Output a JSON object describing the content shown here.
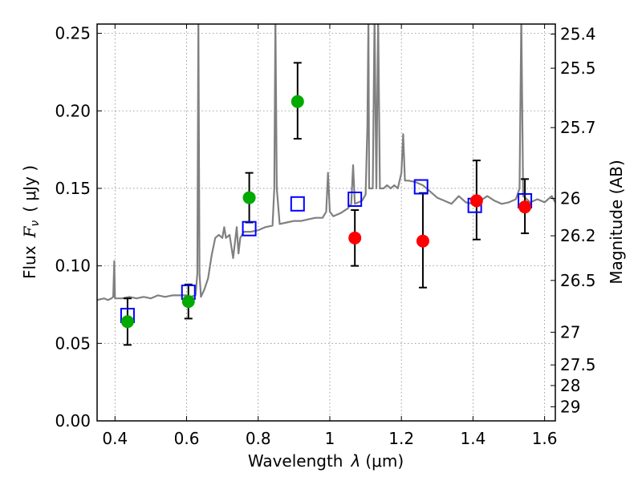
{
  "chart_data": {
    "type": "scatter",
    "xlabel_text": "Wavelength",
    "xlabel_symbol": "λ",
    "xlabel_unit": "(μm)",
    "ylabel_text": "Flux",
    "ylabel_symbol": "F",
    "ylabel_subscript": "ν",
    "ylabel_unit": "( μJy )",
    "y2label": "Magnitude (AB)",
    "xlim": [
      0.35,
      1.63
    ],
    "ylim": [
      0.0,
      0.256
    ],
    "x_ticks": [
      0.4,
      0.6,
      0.8,
      1.0,
      1.2,
      1.4,
      1.6
    ],
    "x_tick_labels": [
      "0.4",
      "0.6",
      "0.8",
      "1",
      "1.2",
      "1.4",
      "1.6"
    ],
    "y_ticks": [
      0.0,
      0.05,
      0.1,
      0.15,
      0.2,
      0.25
    ],
    "y_tick_labels": [
      "0.00",
      "0.05",
      "0.10",
      "0.15",
      "0.20",
      "0.25"
    ],
    "y2_ticks": [
      {
        "label": "25.4",
        "flux": 0.2495
      },
      {
        "label": "25.5",
        "flux": 0.2275
      },
      {
        "label": "25.7",
        "flux": 0.1892
      },
      {
        "label": "26",
        "flux": 0.1435
      },
      {
        "label": "26.2",
        "flux": 0.1194
      },
      {
        "label": "26.5",
        "flux": 0.0906
      },
      {
        "label": "27",
        "flux": 0.0572
      },
      {
        "label": "27.5",
        "flux": 0.0361
      },
      {
        "label": "28",
        "flux": 0.0228
      },
      {
        "label": "29",
        "flux": 0.0091
      }
    ],
    "grid": true,
    "colors": {
      "spectrum": "#808080",
      "model_boxes": "#0000ff",
      "green_points": "#00aa00",
      "red_points": "#ff0000",
      "errorbars": "#000000",
      "grid": "#888888"
    },
    "spectrum": [
      [
        0.35,
        0.078
      ],
      [
        0.37,
        0.079
      ],
      [
        0.38,
        0.078
      ],
      [
        0.39,
        0.079
      ],
      [
        0.395,
        0.08
      ],
      [
        0.398,
        0.103
      ],
      [
        0.4,
        0.079
      ],
      [
        0.42,
        0.079
      ],
      [
        0.44,
        0.08
      ],
      [
        0.46,
        0.079
      ],
      [
        0.48,
        0.08
      ],
      [
        0.5,
        0.079
      ],
      [
        0.52,
        0.081
      ],
      [
        0.54,
        0.08
      ],
      [
        0.56,
        0.081
      ],
      [
        0.58,
        0.081
      ],
      [
        0.6,
        0.081
      ],
      [
        0.61,
        0.08
      ],
      [
        0.625,
        0.081
      ],
      [
        0.63,
        0.095
      ],
      [
        0.633,
        0.26
      ],
      [
        0.636,
        0.095
      ],
      [
        0.64,
        0.08
      ],
      [
        0.65,
        0.085
      ],
      [
        0.66,
        0.092
      ],
      [
        0.67,
        0.107
      ],
      [
        0.68,
        0.118
      ],
      [
        0.69,
        0.12
      ],
      [
        0.7,
        0.118
      ],
      [
        0.705,
        0.125
      ],
      [
        0.71,
        0.118
      ],
      [
        0.72,
        0.12
      ],
      [
        0.73,
        0.105
      ],
      [
        0.74,
        0.125
      ],
      [
        0.745,
        0.108
      ],
      [
        0.75,
        0.118
      ],
      [
        0.76,
        0.122
      ],
      [
        0.78,
        0.122
      ],
      [
        0.8,
        0.123
      ],
      [
        0.82,
        0.125
      ],
      [
        0.84,
        0.126
      ],
      [
        0.845,
        0.15
      ],
      [
        0.848,
        0.26
      ],
      [
        0.852,
        0.15
      ],
      [
        0.86,
        0.127
      ],
      [
        0.88,
        0.128
      ],
      [
        0.9,
        0.129
      ],
      [
        0.92,
        0.129
      ],
      [
        0.94,
        0.13
      ],
      [
        0.96,
        0.131
      ],
      [
        0.98,
        0.131
      ],
      [
        0.99,
        0.135
      ],
      [
        0.995,
        0.16
      ],
      [
        1.0,
        0.135
      ],
      [
        1.01,
        0.132
      ],
      [
        1.03,
        0.134
      ],
      [
        1.05,
        0.137
      ],
      [
        1.06,
        0.14
      ],
      [
        1.065,
        0.165
      ],
      [
        1.07,
        0.14
      ],
      [
        1.09,
        0.142
      ],
      [
        1.1,
        0.146
      ],
      [
        1.105,
        0.19
      ],
      [
        1.108,
        0.26
      ],
      [
        1.11,
        0.15
      ],
      [
        1.12,
        0.15
      ],
      [
        1.125,
        0.26
      ],
      [
        1.13,
        0.15
      ],
      [
        1.135,
        0.26
      ],
      [
        1.14,
        0.15
      ],
      [
        1.15,
        0.15
      ],
      [
        1.16,
        0.152
      ],
      [
        1.17,
        0.15
      ],
      [
        1.18,
        0.152
      ],
      [
        1.19,
        0.15
      ],
      [
        1.2,
        0.16
      ],
      [
        1.205,
        0.185
      ],
      [
        1.21,
        0.155
      ],
      [
        1.22,
        0.155
      ],
      [
        1.24,
        0.154
      ],
      [
        1.26,
        0.152
      ],
      [
        1.28,
        0.148
      ],
      [
        1.3,
        0.144
      ],
      [
        1.32,
        0.142
      ],
      [
        1.34,
        0.14
      ],
      [
        1.36,
        0.145
      ],
      [
        1.38,
        0.141
      ],
      [
        1.4,
        0.14
      ],
      [
        1.42,
        0.142
      ],
      [
        1.44,
        0.145
      ],
      [
        1.46,
        0.142
      ],
      [
        1.48,
        0.14
      ],
      [
        1.5,
        0.141
      ],
      [
        1.52,
        0.143
      ],
      [
        1.53,
        0.15
      ],
      [
        1.535,
        0.26
      ],
      [
        1.54,
        0.145
      ],
      [
        1.56,
        0.141
      ],
      [
        1.58,
        0.143
      ],
      [
        1.6,
        0.141
      ],
      [
        1.62,
        0.145
      ],
      [
        1.63,
        0.141
      ]
    ],
    "model_boxes": [
      {
        "x": 0.435,
        "y": 0.068
      },
      {
        "x": 0.605,
        "y": 0.083
      },
      {
        "x": 0.775,
        "y": 0.124
      },
      {
        "x": 0.91,
        "y": 0.14
      },
      {
        "x": 1.07,
        "y": 0.143
      },
      {
        "x": 1.255,
        "y": 0.151
      },
      {
        "x": 1.405,
        "y": 0.139
      },
      {
        "x": 1.545,
        "y": 0.142
      }
    ],
    "green_points": [
      {
        "x": 0.435,
        "y": 0.064,
        "lo": 0.049,
        "hi": 0.079
      },
      {
        "x": 0.605,
        "y": 0.077,
        "lo": 0.066,
        "hi": 0.088
      },
      {
        "x": 0.775,
        "y": 0.144,
        "lo": 0.128,
        "hi": 0.16
      },
      {
        "x": 0.91,
        "y": 0.206,
        "lo": 0.182,
        "hi": 0.231
      }
    ],
    "red_points": [
      {
        "x": 1.07,
        "y": 0.118,
        "lo": 0.1,
        "hi": 0.136
      },
      {
        "x": 1.26,
        "y": 0.116,
        "lo": 0.086,
        "hi": 0.147
      },
      {
        "x": 1.41,
        "y": 0.142,
        "lo": 0.117,
        "hi": 0.168
      },
      {
        "x": 1.545,
        "y": 0.138,
        "lo": 0.121,
        "hi": 0.156
      }
    ]
  }
}
